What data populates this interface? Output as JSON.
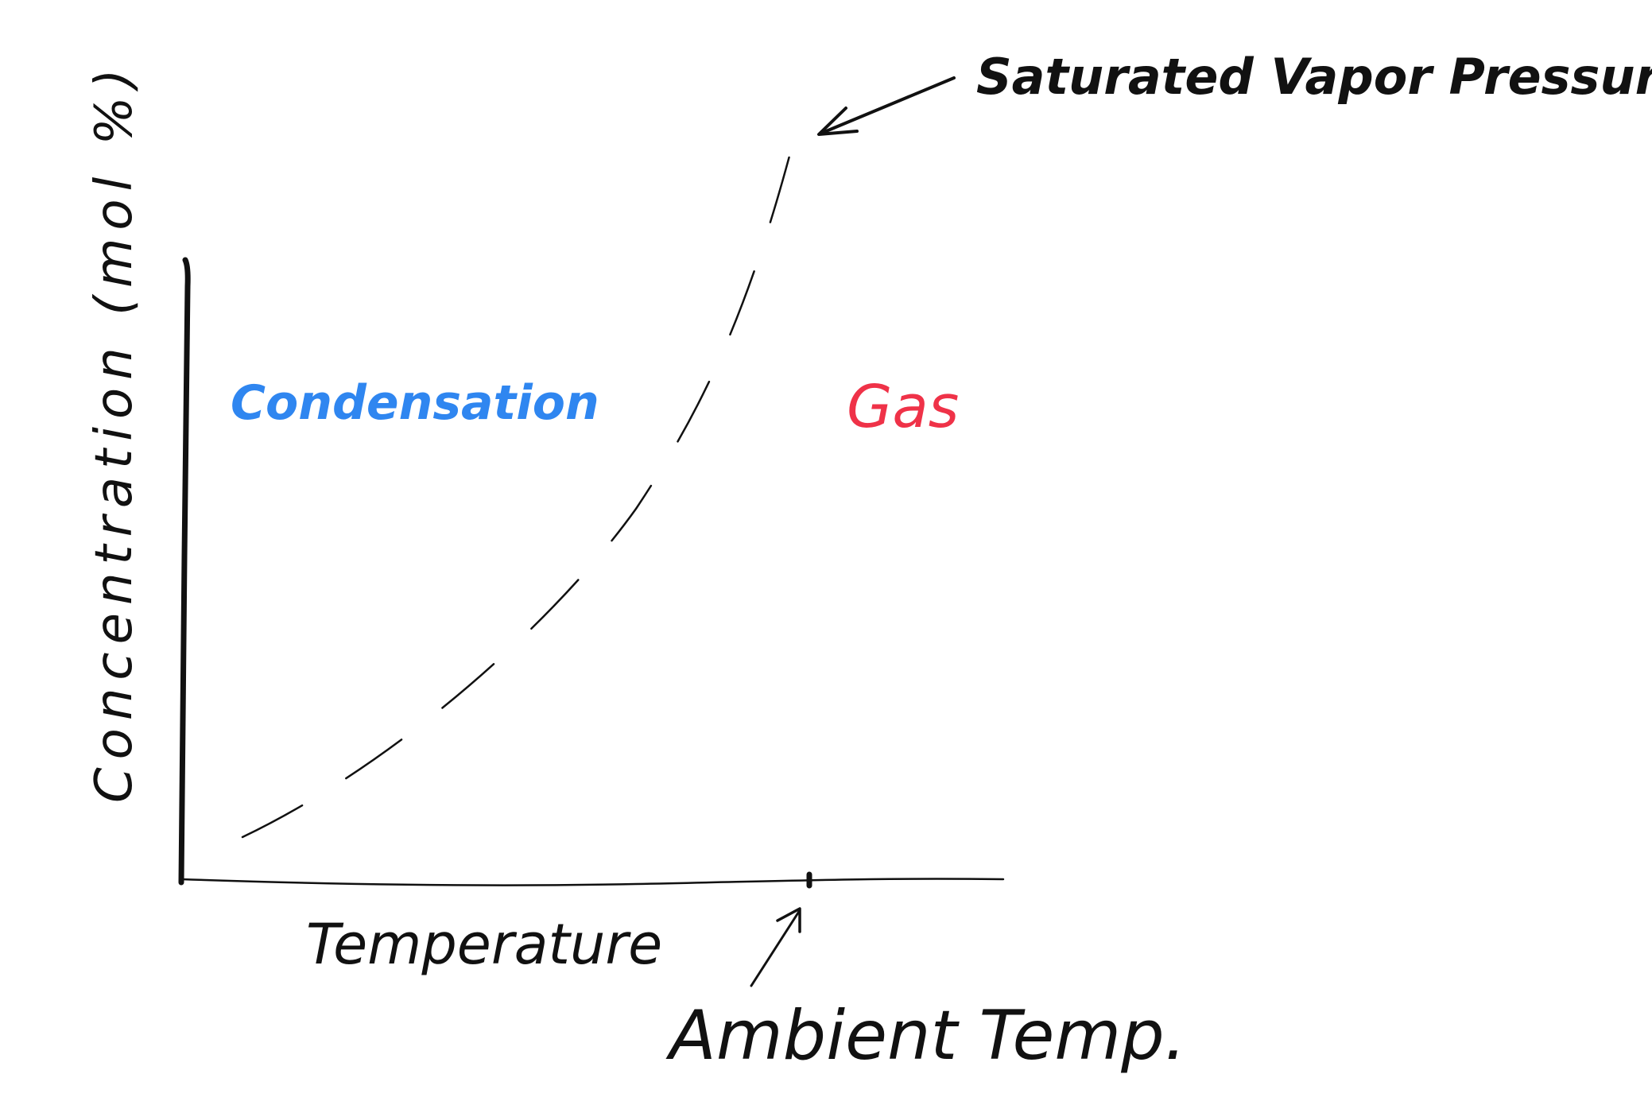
{
  "axes": {
    "y_label": "Concentration (mol %)",
    "x_label": "Temperature"
  },
  "regions": {
    "left_label": "Condensation",
    "right_label": "Gas"
  },
  "curve": {
    "label": "Saturated Vapor Pressure"
  },
  "marker": {
    "label": "Ambient Temp."
  },
  "colors": {
    "ink": "#111111",
    "condensation": "#2f86f0",
    "gas": "#ef3248"
  }
}
